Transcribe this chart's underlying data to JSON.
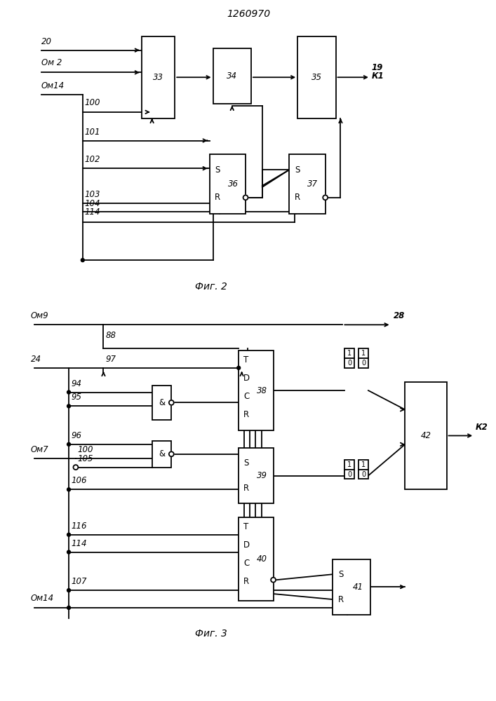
{
  "title": "1260970",
  "fig2_caption": "Фиг. 2",
  "fig3_caption": "Фиг. 3",
  "bg_color": "#ffffff",
  "line_color": "#000000",
  "lw": 1.3,
  "font_size": 8.5
}
